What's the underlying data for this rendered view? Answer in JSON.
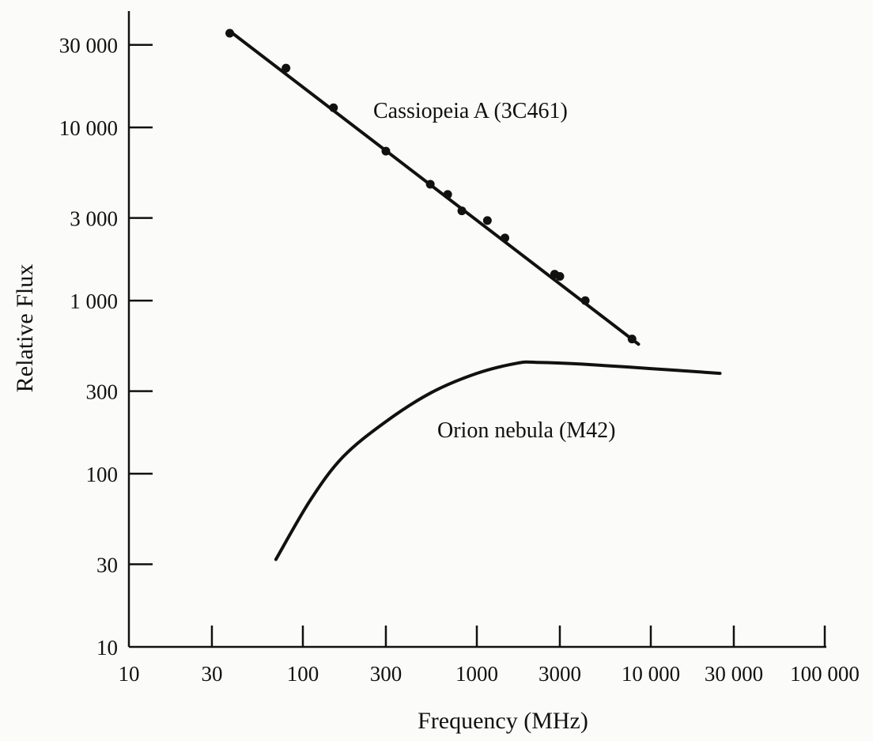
{
  "chart_data": {
    "type": "line",
    "title": "",
    "xlabel": "Frequency (MHz)",
    "ylabel": "Relative Flux",
    "x_scale": "log",
    "y_scale": "log",
    "xlim": [
      10,
      100000
    ],
    "ylim": [
      10,
      50000
    ],
    "grid": false,
    "x_ticks": [
      10,
      30,
      100,
      300,
      1000,
      3000,
      10000,
      30000,
      100000
    ],
    "x_tick_labels": [
      "10",
      "30",
      "100",
      "300",
      "1000",
      "3000",
      "10 000",
      "30 000",
      "100 000"
    ],
    "y_ticks": [
      10,
      30,
      100,
      300,
      1000,
      3000,
      10000,
      30000
    ],
    "y_tick_labels": [
      "10",
      "30",
      "100",
      "300",
      "1 000",
      "3 000",
      "10 000",
      "30 000"
    ],
    "series": [
      {
        "name": "Cassiopeia A (3C461)",
        "kind": "line+markers",
        "fit_line": [
          [
            38,
            36000
          ],
          [
            8500,
            560
          ]
        ],
        "points": [
          [
            38,
            35000
          ],
          [
            80,
            22000
          ],
          [
            150,
            13000
          ],
          [
            300,
            7300
          ],
          [
            540,
            4700
          ],
          [
            680,
            4100
          ],
          [
            820,
            3300
          ],
          [
            1150,
            2900
          ],
          [
            1450,
            2300
          ],
          [
            2800,
            1420
          ],
          [
            3000,
            1380
          ],
          [
            4200,
            1000
          ],
          [
            7800,
            600
          ]
        ]
      },
      {
        "name": "Orion nebula (M42)",
        "kind": "line",
        "points": [
          [
            70,
            32
          ],
          [
            110,
            70
          ],
          [
            170,
            125
          ],
          [
            300,
            200
          ],
          [
            550,
            295
          ],
          [
            1000,
            380
          ],
          [
            1700,
            435
          ],
          [
            2200,
            440
          ],
          [
            4000,
            430
          ],
          [
            10000,
            405
          ],
          [
            25000,
            380
          ]
        ]
      }
    ]
  }
}
